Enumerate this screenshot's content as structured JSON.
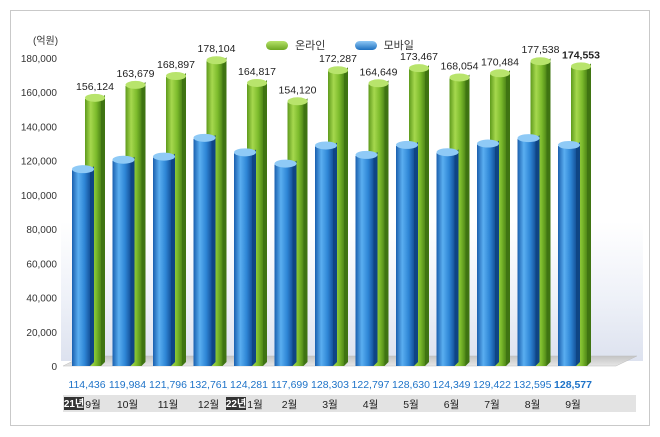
{
  "chart_data": {
    "type": "bar",
    "unit_label": "(억원)",
    "ylim": [
      0,
      180000
    ],
    "yticks": [
      "180,000",
      "160,000",
      "140,000",
      "120,000",
      "100,000",
      "80,000",
      "60,000",
      "40,000",
      "20,000",
      "0"
    ],
    "ytick_values": [
      180000,
      160000,
      140000,
      120000,
      100000,
      80000,
      60000,
      40000,
      20000,
      0
    ],
    "categories": [
      "9월",
      "10월",
      "11월",
      "12월",
      "1월",
      "2월",
      "3월",
      "4월",
      "5월",
      "6월",
      "7월",
      "8월",
      "9월"
    ],
    "year_badges": [
      {
        "index": 0,
        "label": "21년"
      },
      {
        "index": 4,
        "label": "22년"
      }
    ],
    "series": [
      {
        "name": "온라인",
        "color": "#7dbb2a",
        "values": [
          156124,
          163679,
          168897,
          178104,
          164817,
          154120,
          172287,
          164649,
          173467,
          168054,
          170484,
          177538,
          174553
        ],
        "labels": [
          "156,124",
          "163,679",
          "168,897",
          "178,104",
          "164,817",
          "154,120",
          "172,287",
          "164,649",
          "173,467",
          "168,054",
          "170,484",
          "177,538",
          "174,553"
        ]
      },
      {
        "name": "모바일",
        "color": "#2e86d6",
        "values": [
          114436,
          119984,
          121796,
          132761,
          124281,
          117699,
          128303,
          122797,
          128630,
          124349,
          129422,
          132595,
          128577
        ],
        "labels": [
          "114,436",
          "119,984",
          "121,796",
          "132,761",
          "124,281",
          "117,699",
          "128,303",
          "122,797",
          "128,630",
          "124,349",
          "129,422",
          "132,595",
          "128,577"
        ]
      }
    ],
    "highlight_index": 12,
    "grid": false,
    "legend_position": "top-center"
  }
}
